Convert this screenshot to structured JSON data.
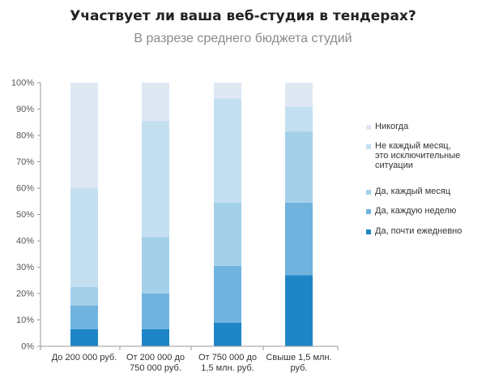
{
  "chart_data": {
    "type": "bar",
    "stacked": true,
    "title": "Участвует ли ваша веб-студия в тендерах?",
    "subtitle": "В разрезе среднего бюджета студий",
    "categories": [
      [
        "До 200 000 руб."
      ],
      [
        "От 200 000 до",
        "750 000 руб."
      ],
      [
        "От 750 000 до",
        "1,5 млн. руб."
      ],
      [
        "Свыше 1,5 млн.",
        "руб."
      ]
    ],
    "yticks": [
      "0%",
      "10%",
      "20%",
      "30%",
      "40%",
      "50%",
      "60%",
      "70%",
      "80%",
      "90%",
      "100%"
    ],
    "ylim": [
      0,
      100
    ],
    "series": [
      {
        "name": "Да, почти ежедневно",
        "color": "#1e86c6",
        "values": [
          6.5,
          6.5,
          9,
          27
        ]
      },
      {
        "name": "Да, каждую неделю",
        "color": "#6fb3de",
        "values": [
          9,
          13.5,
          21.5,
          27.5
        ]
      },
      {
        "name": "Да, каждый месяц",
        "color": "#a4d0ea",
        "values": [
          7,
          21.5,
          24,
          27
        ]
      },
      {
        "name": "Не каждый месяц, это исключительные ситуации",
        "color": "#c3e0f1",
        "values": [
          37.5,
          44,
          39.5,
          9.5
        ]
      },
      {
        "name": "Никогда",
        "color": "#dde8f3",
        "values": [
          40,
          14.5,
          6,
          9
        ]
      }
    ],
    "legend": {
      "position": "right",
      "order": [
        "Никогда",
        "Не каждый месяц, это исключительные ситуации",
        "Да, каждый месяц",
        "Да, каждую неделю",
        "Да, почти ежедневно"
      ],
      "labels": [
        [
          "Никогда"
        ],
        [
          "Не каждый месяц,",
          "это исключительные",
          "ситуации"
        ],
        [
          "Да, каждый месяц"
        ],
        [
          "Да, каждую неделю"
        ],
        [
          "Да, почти ежедневно"
        ]
      ]
    },
    "grid": false
  }
}
